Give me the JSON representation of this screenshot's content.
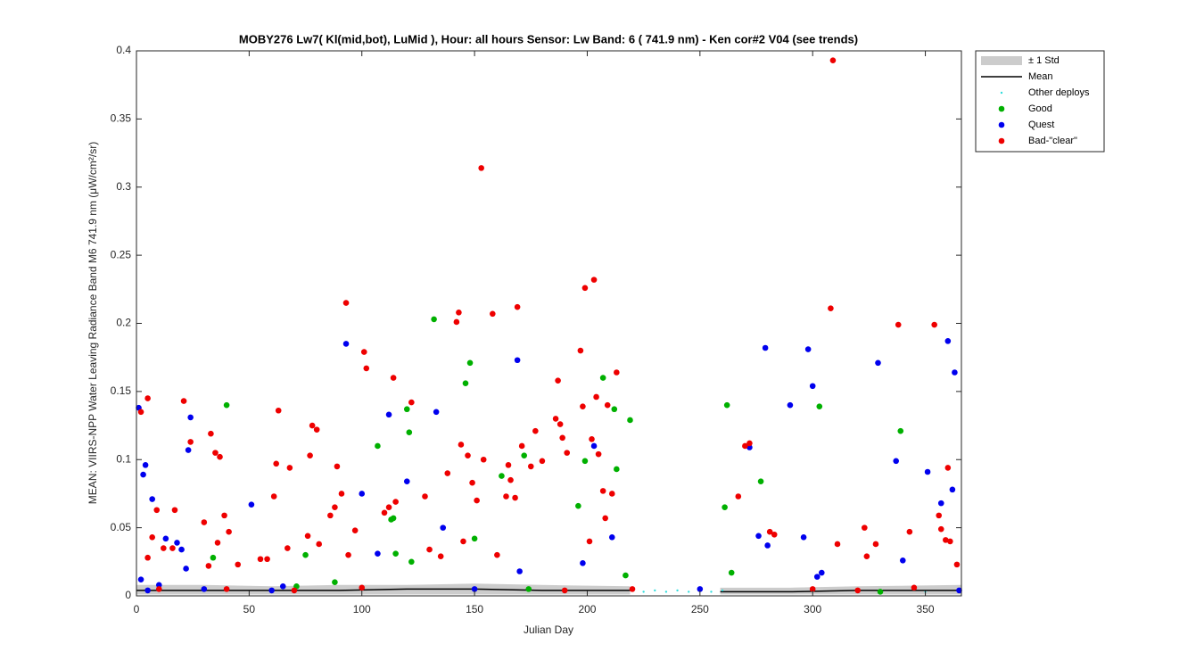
{
  "chart_data": {
    "type": "scatter",
    "title": "MOBY276   Lw7( Kl(mid,bot), LuMid ),   Hour: all hours  Sensor: Lw Band: 6 ( 741.9 nm)  - Ken cor#2 V04 (see trends)",
    "x_label": "Julian Day",
    "y_label": "MEAN: VIIRS-NPP Water Leaving Radiance Band M6 741.9 nm (μW/cm²/sr)",
    "xlim": [
      0,
      366
    ],
    "ylim": [
      0,
      0.4
    ],
    "xticks": [
      0,
      50,
      100,
      150,
      200,
      250,
      300,
      350
    ],
    "yticks": [
      0,
      0.05,
      0.1,
      0.15,
      0.2,
      0.25,
      0.3,
      0.35,
      0.4
    ],
    "legend": "outside-top-right",
    "series": [
      {
        "name": "± 1 Std",
        "style": "band",
        "color": "#cccccc",
        "x": [
          0,
          30,
          60,
          90,
          120,
          150,
          180,
          219,
          240,
          259,
          290,
          320,
          366
        ],
        "values": [
          0.008,
          0.008,
          0.007,
          0.008,
          0.008,
          0.009,
          0.008,
          0.007,
          null,
          0.006,
          0.006,
          0.007,
          0.008
        ],
        "lower": [
          0.001,
          0.001,
          0.001,
          0.001,
          0.001,
          0.001,
          0.001,
          0.001,
          null,
          0.001,
          0.001,
          0.001,
          0.001
        ]
      },
      {
        "name": "Mean",
        "style": "line",
        "color": "#000000",
        "x": [
          0,
          30,
          60,
          90,
          120,
          150,
          180,
          219,
          240,
          259,
          290,
          320,
          366
        ],
        "values": [
          0.004,
          0.004,
          0.004,
          0.004,
          0.005,
          0.005,
          0.004,
          0.004,
          null,
          0.003,
          0.003,
          0.004,
          0.004
        ]
      },
      {
        "name": "Other deploys",
        "style": "dot",
        "color": "#33dddd",
        "x": [
          220,
          225,
          230,
          235,
          240,
          245,
          250,
          255,
          260,
          300,
          330,
          350
        ],
        "values": [
          0.004,
          0.003,
          0.004,
          0.003,
          0.004,
          0.003,
          0.004,
          0.003,
          0.004,
          0.003,
          0.004,
          0.003
        ]
      },
      {
        "name": "Good",
        "style": "marker",
        "color": "#00b000",
        "x": [
          34,
          40,
          71,
          75,
          88,
          107,
          113,
          114,
          115,
          120,
          121,
          122,
          132,
          146,
          148,
          150,
          162,
          172,
          174,
          196,
          199,
          207,
          212,
          213,
          217,
          219,
          261,
          262,
          264,
          277,
          303,
          330,
          339
        ],
        "values": [
          0.028,
          0.14,
          0.007,
          0.03,
          0.01,
          0.11,
          0.056,
          0.057,
          0.031,
          0.137,
          0.12,
          0.025,
          0.203,
          0.156,
          0.171,
          0.042,
          0.088,
          0.103,
          0.005,
          0.066,
          0.099,
          0.16,
          0.137,
          0.093,
          0.015,
          0.129,
          0.065,
          0.14,
          0.017,
          0.084,
          0.139,
          0.003,
          0.121
        ]
      },
      {
        "name": "Quest",
        "style": "marker",
        "color": "#0000ee",
        "x": [
          1,
          2,
          3,
          4,
          5,
          7,
          10,
          13,
          18,
          20,
          22,
          23,
          24,
          30,
          51,
          60,
          65,
          93,
          100,
          107,
          112,
          120,
          133,
          136,
          150,
          169,
          170,
          198,
          203,
          211,
          250,
          272,
          276,
          279,
          280,
          290,
          296,
          298,
          300,
          302,
          304,
          329,
          337,
          340,
          351,
          357,
          360,
          362,
          363,
          365
        ],
        "values": [
          0.138,
          0.012,
          0.089,
          0.096,
          0.004,
          0.071,
          0.008,
          0.042,
          0.039,
          0.034,
          0.02,
          0.107,
          0.131,
          0.005,
          0.067,
          0.004,
          0.007,
          0.185,
          0.075,
          0.031,
          0.133,
          0.084,
          0.135,
          0.05,
          0.005,
          0.173,
          0.018,
          0.024,
          0.11,
          0.043,
          0.005,
          0.109,
          0.044,
          0.182,
          0.037,
          0.14,
          0.043,
          0.181,
          0.154,
          0.014,
          0.017,
          0.171,
          0.099,
          0.026,
          0.091,
          0.068,
          0.187,
          0.078,
          0.164,
          0.004
        ]
      },
      {
        "name": "Bad-\"clear\"",
        "style": "marker",
        "color": "#ee0000",
        "x": [
          2,
          5,
          5,
          7,
          9,
          10,
          12,
          16,
          17,
          21,
          24,
          30,
          32,
          33,
          35,
          36,
          37,
          39,
          40,
          41,
          45,
          55,
          58,
          61,
          62,
          63,
          67,
          68,
          70,
          76,
          77,
          78,
          80,
          81,
          86,
          88,
          89,
          91,
          93,
          94,
          97,
          100,
          101,
          102,
          110,
          112,
          114,
          115,
          122,
          128,
          130,
          135,
          138,
          142,
          143,
          144,
          145,
          147,
          149,
          151,
          153,
          154,
          158,
          160,
          164,
          165,
          166,
          168,
          169,
          171,
          175,
          177,
          180,
          186,
          187,
          188,
          189,
          190,
          191,
          197,
          198,
          199,
          201,
          202,
          203,
          204,
          205,
          207,
          208,
          209,
          211,
          213,
          220,
          267,
          270,
          272,
          281,
          283,
          300,
          308,
          309,
          311,
          320,
          323,
          324,
          328,
          338,
          343,
          345,
          354,
          356,
          357,
          359,
          360,
          361,
          364
        ],
        "values": [
          0.135,
          0.028,
          0.145,
          0.043,
          0.063,
          0.005,
          0.035,
          0.035,
          0.063,
          0.143,
          0.113,
          0.054,
          0.022,
          0.119,
          0.105,
          0.039,
          0.102,
          0.059,
          0.005,
          0.047,
          0.023,
          0.027,
          0.027,
          0.073,
          0.097,
          0.136,
          0.035,
          0.094,
          0.004,
          0.044,
          0.103,
          0.125,
          0.122,
          0.038,
          0.059,
          0.065,
          0.095,
          0.075,
          0.215,
          0.03,
          0.048,
          0.006,
          0.179,
          0.167,
          0.061,
          0.065,
          0.16,
          0.069,
          0.142,
          0.073,
          0.034,
          0.029,
          0.09,
          0.201,
          0.208,
          0.111,
          0.04,
          0.103,
          0.083,
          0.07,
          0.314,
          0.1,
          0.207,
          0.03,
          0.073,
          0.096,
          0.085,
          0.072,
          0.212,
          0.11,
          0.095,
          0.121,
          0.099,
          0.13,
          0.158,
          0.126,
          0.116,
          0.004,
          0.105,
          0.18,
          0.139,
          0.226,
          0.04,
          0.115,
          0.232,
          0.146,
          0.104,
          0.077,
          0.057,
          0.14,
          0.075,
          0.164,
          0.005,
          0.073,
          0.11,
          0.112,
          0.047,
          0.045,
          0.005,
          0.211,
          0.393,
          0.038,
          0.004,
          0.05,
          0.029,
          0.038,
          0.199,
          0.047,
          0.006,
          0.199,
          0.059,
          0.049,
          0.041,
          0.094,
          0.04,
          0.023
        ]
      }
    ]
  }
}
